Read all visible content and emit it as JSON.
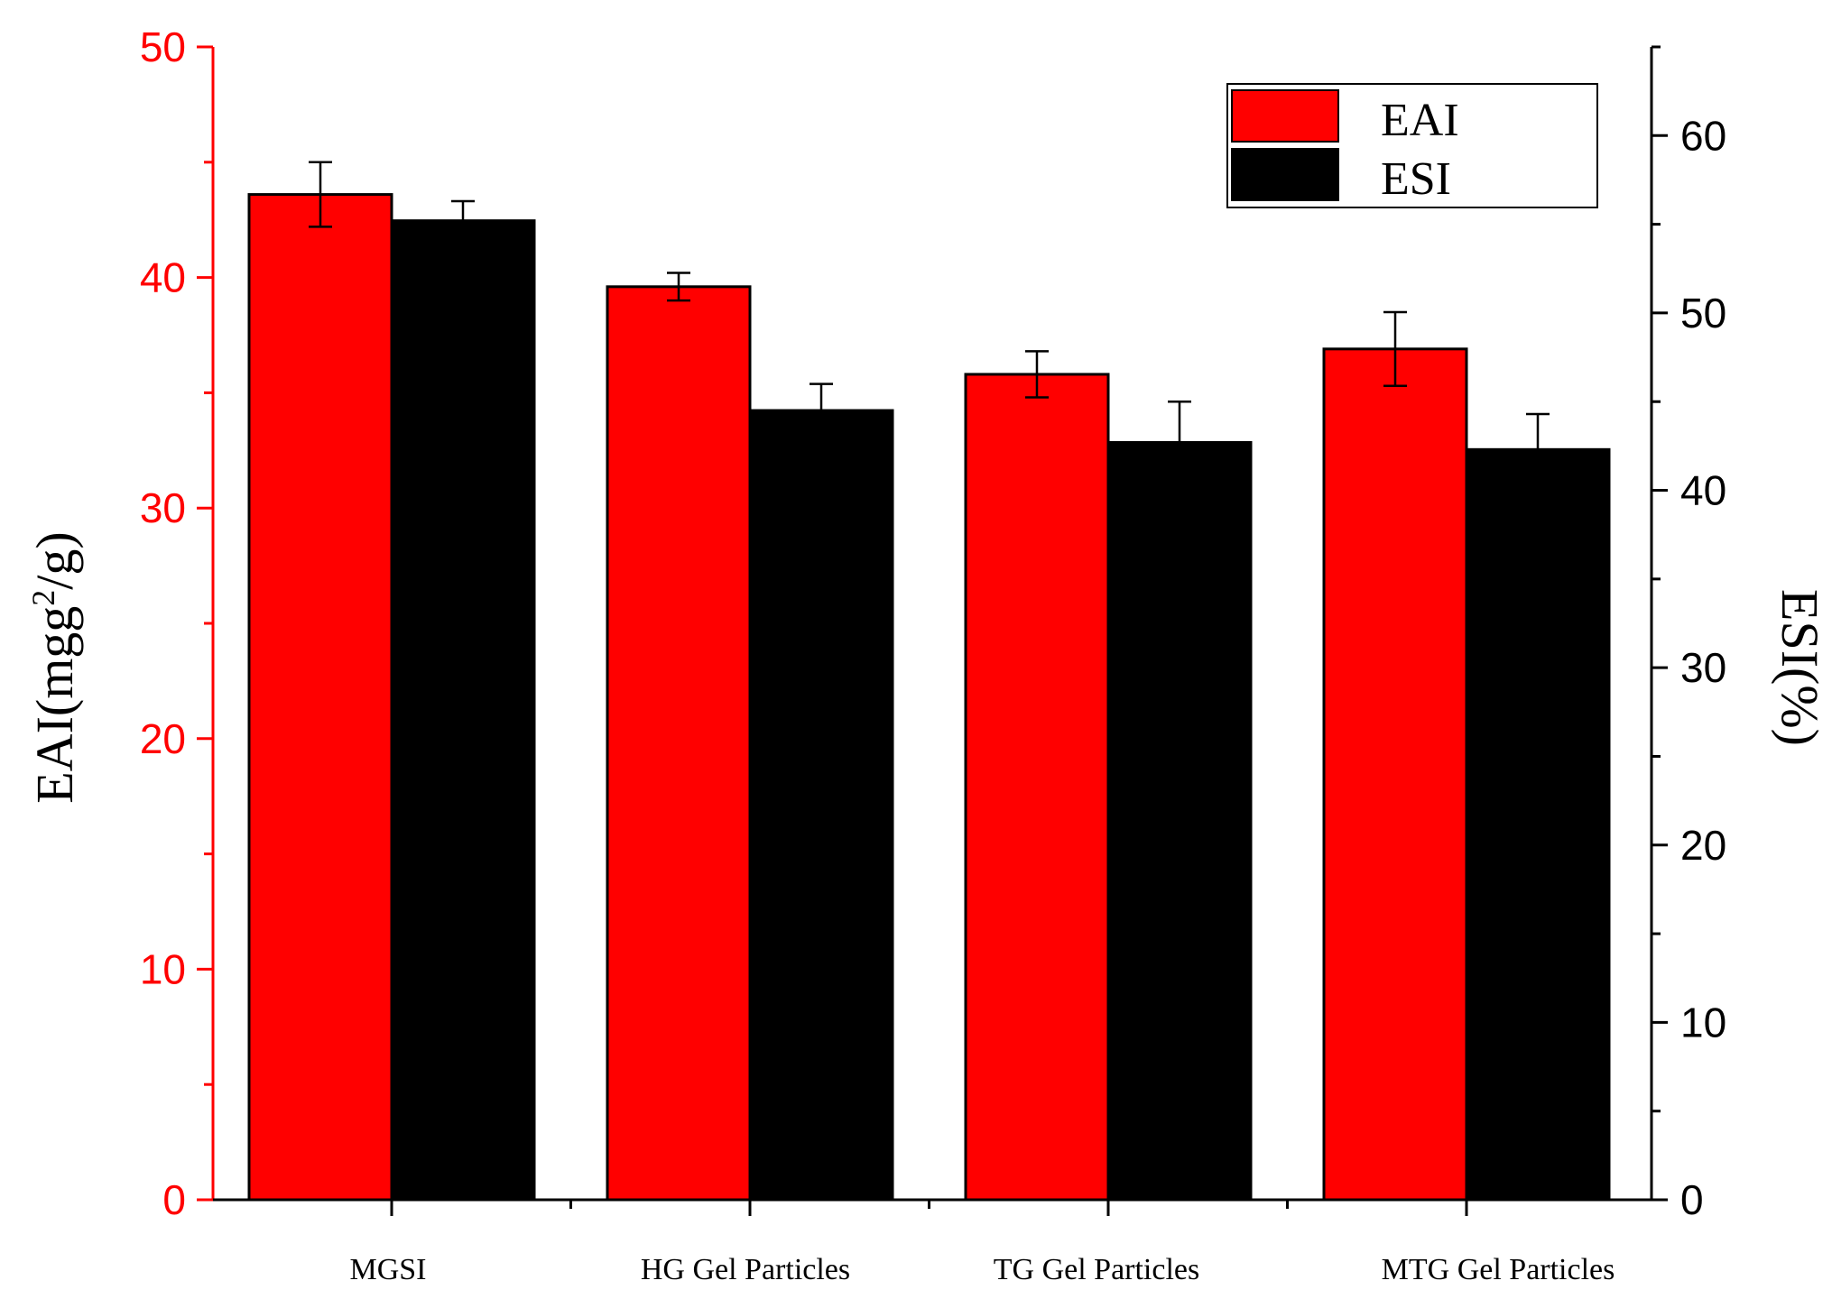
{
  "chart_data": {
    "type": "bar",
    "categories": [
      "MGSI",
      "HG Gel Particles",
      "TG Gel Particles",
      "MTG Gel Particles"
    ],
    "series": [
      {
        "name": "EAI",
        "axis": "left",
        "color": "#ff0000",
        "values": [
          43.6,
          39.6,
          35.8,
          36.9
        ],
        "errors": [
          1.4,
          0.6,
          1.0,
          1.6
        ]
      },
      {
        "name": "ESI",
        "axis": "right",
        "color": "#000000",
        "values": [
          55.2,
          44.5,
          42.7,
          42.3
        ],
        "errors": [
          1.1,
          1.5,
          2.3,
          2.0
        ]
      }
    ],
    "ylabel_left_main": "EAI(mgg",
    "ylabel_left_sup": "2",
    "ylabel_left_tail": "/g)",
    "ylabel_right": "ESI(%)",
    "ylim_left": [
      0,
      50
    ],
    "ylim_right": [
      0,
      65
    ],
    "yticks_left": [
      "0",
      "10",
      "20",
      "30",
      "40",
      "50"
    ],
    "yticks_right": [
      "0",
      "10",
      "20",
      "30",
      "40",
      "50",
      "60"
    ],
    "left_axis_color": "#ff0000",
    "grid": false,
    "legend_position": "top-right"
  }
}
